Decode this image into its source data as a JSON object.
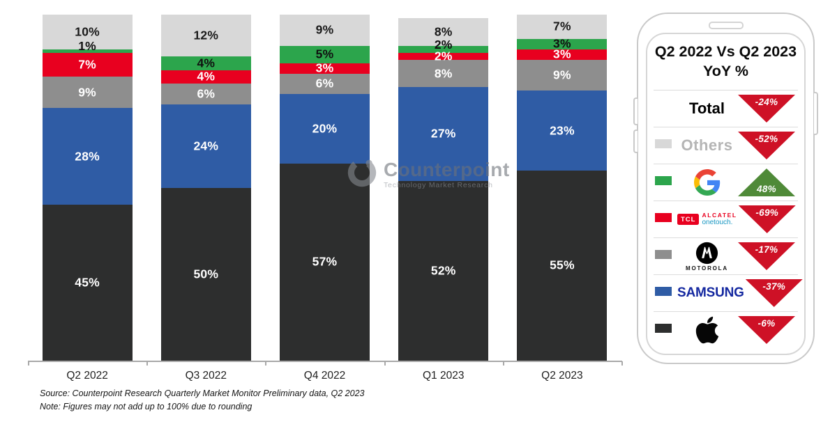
{
  "chart_data": {
    "type": "bar",
    "stacked": true,
    "unit": "%",
    "categories": [
      "Q2 2022",
      "Q3 2022",
      "Q4 2022",
      "Q1 2023",
      "Q2 2023"
    ],
    "series": [
      {
        "name": "Others",
        "color": "#D8D8D8",
        "label_color": "#1A1A1A",
        "values": [
          10,
          12,
          9,
          8,
          7
        ]
      },
      {
        "name": "Google",
        "color": "#2CA54C",
        "label_color": "#101010",
        "values": [
          1,
          4,
          5,
          2,
          3
        ]
      },
      {
        "name": "TCL",
        "color": "#E8001F",
        "label_color": "#FFFFFF",
        "values": [
          7,
          4,
          3,
          2,
          3
        ]
      },
      {
        "name": "Motorola",
        "color": "#8E8E8E",
        "label_color": "#FFFFFF",
        "values": [
          9,
          6,
          6,
          8,
          9
        ]
      },
      {
        "name": "Samsung",
        "color": "#2F5CA5",
        "label_color": "#FFFFFF",
        "values": [
          28,
          24,
          20,
          27,
          23
        ]
      },
      {
        "name": "Apple",
        "color": "#2D2E2E",
        "label_color": "#FFFFFF",
        "values": [
          45,
          50,
          57,
          52,
          55
        ]
      }
    ],
    "ylim": [
      0,
      100
    ],
    "grid": false,
    "legend_position": "right"
  },
  "watermark": {
    "brand": "Counterpoint",
    "tagline": "Technology Market Research"
  },
  "panel": {
    "title_line1": "Q2 2022 Vs Q2 2023",
    "title_line2": "YoY %",
    "arrow_down_color": "#CE1126",
    "arrow_up_color": "#4F8A38",
    "brand_colors": {
      "samsung_wordmark": "#1428A0",
      "tcl_red": "#E8001F",
      "alcatel_red": "#E8001F",
      "onetouch_teal": "#1796C2"
    },
    "rows": [
      {
        "brand": "Total",
        "logo": "total",
        "label": "Total",
        "change": "-24%",
        "direction": "down"
      },
      {
        "brand": "Others",
        "logo": "others",
        "label": "Others",
        "swatch": "#D8D8D8",
        "change": "-52%",
        "direction": "down"
      },
      {
        "brand": "Google",
        "logo": "google",
        "swatch": "#2CA54C",
        "change": "48%",
        "direction": "up"
      },
      {
        "brand": "TCL Alcatel",
        "logo": "tcl",
        "swatch": "#E8001F",
        "logo_text": {
          "box": "TCL",
          "line1": "ALCATEL",
          "line2": "onetouch."
        },
        "change": "-69%",
        "direction": "down"
      },
      {
        "brand": "Motorola",
        "logo": "motorola",
        "swatch": "#8E8E8E",
        "wordmark": "MOTOROLA",
        "change": "-17%",
        "direction": "down"
      },
      {
        "brand": "Samsung",
        "logo": "samsung",
        "swatch": "#2F5CA5",
        "wordmark": "SAMSUNG",
        "change": "-37%",
        "direction": "down"
      },
      {
        "brand": "Apple",
        "logo": "apple",
        "swatch": "#2D2E2E",
        "change": "-6%",
        "direction": "down"
      }
    ]
  },
  "footer": {
    "source": "Source: Counterpoint Research Quarterly Market Monitor Preliminary data, Q2 2023",
    "note": "Note: Figures may not add up to 100% due to rounding"
  }
}
